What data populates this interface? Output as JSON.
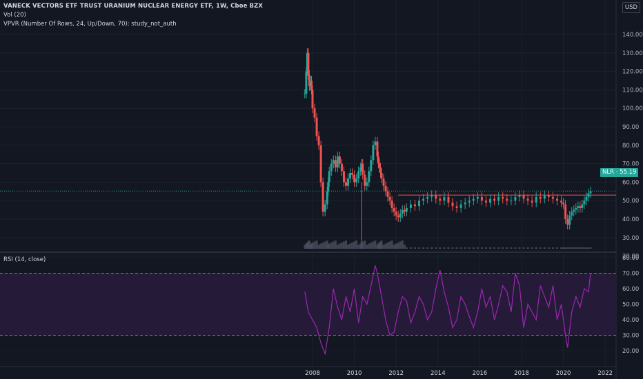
{
  "header": {
    "title": "VANECK VECTORS ETF TRUST URANIUM NUCLEAR ENERGY ETF, 1W, Cboe BZX",
    "vol_label": "Vol (20)",
    "vpvr_label": "VPVR (Number Of Rows, 24, Up/Down, 70): study_not_auth",
    "currency": "USD"
  },
  "price_badge": {
    "symbol": "NLR",
    "price": "55.19",
    "text": "NLR · 55.19",
    "color": "#26a69a"
  },
  "rsi": {
    "label": "RSI (14, close)",
    "upper_band": 70,
    "lower_band": 30,
    "axis_ticks": [
      "80.00",
      "70.00",
      "60.00",
      "50.00",
      "40.00",
      "30.00",
      "20.00"
    ],
    "color": "#9c27b0"
  },
  "price_axis_ticks": [
    "140.00",
    "130.00",
    "120.00",
    "110.00",
    "100.00",
    "90.00",
    "80.00",
    "70.00",
    "60.00",
    "50.00",
    "40.00",
    "30.00",
    "20.00"
  ],
  "time_axis_ticks": [
    "2008",
    "2010",
    "2012",
    "2014",
    "2016",
    "2018",
    "2020",
    "2022"
  ],
  "resistance_line": {
    "price": 53,
    "color": "#ef5350"
  },
  "colors": {
    "up": "#26a69a",
    "down": "#ef5350",
    "background": "#131722",
    "grid": "#1e222d"
  },
  "chart_data": {
    "type": "line",
    "title": "VANECK VECTORS ETF TRUST URANIUM NUCLEAR ENERGY ETF, 1W, Cboe BZX",
    "interval": "1W",
    "ylim": [
      15,
      145
    ],
    "xlim": [
      2007.6,
      2022.4
    ],
    "price_series": {
      "name": "NLR",
      "x": [
        2007.63,
        2007.7,
        2007.75,
        2007.8,
        2007.85,
        2007.9,
        2007.95,
        2008.0,
        2008.1,
        2008.2,
        2008.3,
        2008.4,
        2008.5,
        2008.6,
        2008.7,
        2008.75,
        2008.8,
        2008.9,
        2009.0,
        2009.1,
        2009.2,
        2009.3,
        2009.4,
        2009.5,
        2009.6,
        2009.7,
        2009.8,
        2009.9,
        2010.0,
        2010.1,
        2010.2,
        2010.3,
        2010.35,
        2010.4,
        2010.5,
        2010.6,
        2010.7,
        2010.8,
        2010.9,
        2011.0,
        2011.1,
        2011.15,
        2011.2,
        2011.25,
        2011.3,
        2011.4,
        2011.5,
        2011.6,
        2011.7,
        2011.8,
        2011.9,
        2012.0,
        2012.1,
        2012.2,
        2012.3,
        2012.4,
        2012.5,
        2012.7,
        2012.9,
        2013.1,
        2013.3,
        2013.5,
        2013.7,
        2013.9,
        2014.1,
        2014.3,
        2014.5,
        2014.7,
        2014.9,
        2015.1,
        2015.3,
        2015.5,
        2015.7,
        2015.9,
        2016.1,
        2016.3,
        2016.5,
        2016.7,
        2016.9,
        2017.1,
        2017.3,
        2017.5,
        2017.7,
        2017.9,
        2018.1,
        2018.3,
        2018.5,
        2018.7,
        2018.9,
        2019.1,
        2019.3,
        2019.5,
        2019.7,
        2019.9,
        2020.0,
        2020.1,
        2020.2,
        2020.3,
        2020.4,
        2020.5,
        2020.6,
        2020.7,
        2020.8,
        2020.9,
        2021.0,
        2021.1,
        2021.2,
        2021.3
      ],
      "y": [
        108,
        120,
        130,
        118,
        112,
        115,
        110,
        100,
        95,
        85,
        80,
        60,
        44,
        48,
        55,
        60,
        66,
        70,
        72,
        68,
        74,
        70,
        66,
        60,
        58,
        62,
        65,
        64,
        60,
        62,
        66,
        68,
        70,
        64,
        58,
        60,
        66,
        72,
        80,
        82,
        74,
        70,
        68,
        65,
        62,
        58,
        55,
        52,
        50,
        46,
        44,
        42,
        41,
        43,
        45,
        44,
        46,
        48,
        47,
        50,
        51,
        52,
        53,
        51,
        50,
        52,
        49,
        47,
        46,
        48,
        49,
        50,
        51,
        52,
        50,
        49,
        51,
        50,
        52,
        51,
        50,
        50,
        52,
        53,
        51,
        50,
        49,
        52,
        51,
        53,
        52,
        51,
        50,
        49,
        48,
        40,
        37,
        42,
        44,
        45,
        46,
        47,
        46,
        48,
        50,
        52,
        54,
        55.19
      ]
    },
    "rsi_series": {
      "name": "RSI (14, close)",
      "x": [
        2007.63,
        2007.8,
        2008.0,
        2008.2,
        2008.4,
        2008.6,
        2008.8,
        2009.0,
        2009.2,
        2009.4,
        2009.6,
        2009.8,
        2010.0,
        2010.2,
        2010.4,
        2010.6,
        2010.8,
        2011.0,
        2011.1,
        2011.3,
        2011.5,
        2011.7,
        2011.9,
        2012.1,
        2012.3,
        2012.5,
        2012.7,
        2012.9,
        2013.1,
        2013.3,
        2013.5,
        2013.7,
        2013.9,
        2014.1,
        2014.3,
        2014.5,
        2014.7,
        2014.9,
        2015.1,
        2015.3,
        2015.5,
        2015.7,
        2015.9,
        2016.1,
        2016.3,
        2016.5,
        2016.7,
        2016.9,
        2017.1,
        2017.3,
        2017.5,
        2017.7,
        2017.9,
        2018.1,
        2018.3,
        2018.5,
        2018.7,
        2018.9,
        2019.1,
        2019.3,
        2019.5,
        2019.7,
        2019.9,
        2020.1,
        2020.2,
        2020.4,
        2020.6,
        2020.8,
        2021.0,
        2021.2,
        2021.3
      ],
      "y": [
        58,
        45,
        40,
        35,
        25,
        18,
        35,
        60,
        48,
        40,
        55,
        45,
        60,
        38,
        55,
        50,
        62,
        75,
        70,
        55,
        40,
        30,
        32,
        45,
        55,
        52,
        38,
        45,
        55,
        50,
        40,
        45,
        60,
        72,
        58,
        48,
        35,
        40,
        55,
        50,
        42,
        35,
        45,
        60,
        48,
        55,
        40,
        50,
        62,
        58,
        45,
        70,
        62,
        35,
        50,
        45,
        40,
        62,
        55,
        48,
        62,
        40,
        50,
        30,
        22,
        45,
        55,
        48,
        60,
        58,
        70
      ]
    },
    "volume_note": "Vol (20)"
  }
}
